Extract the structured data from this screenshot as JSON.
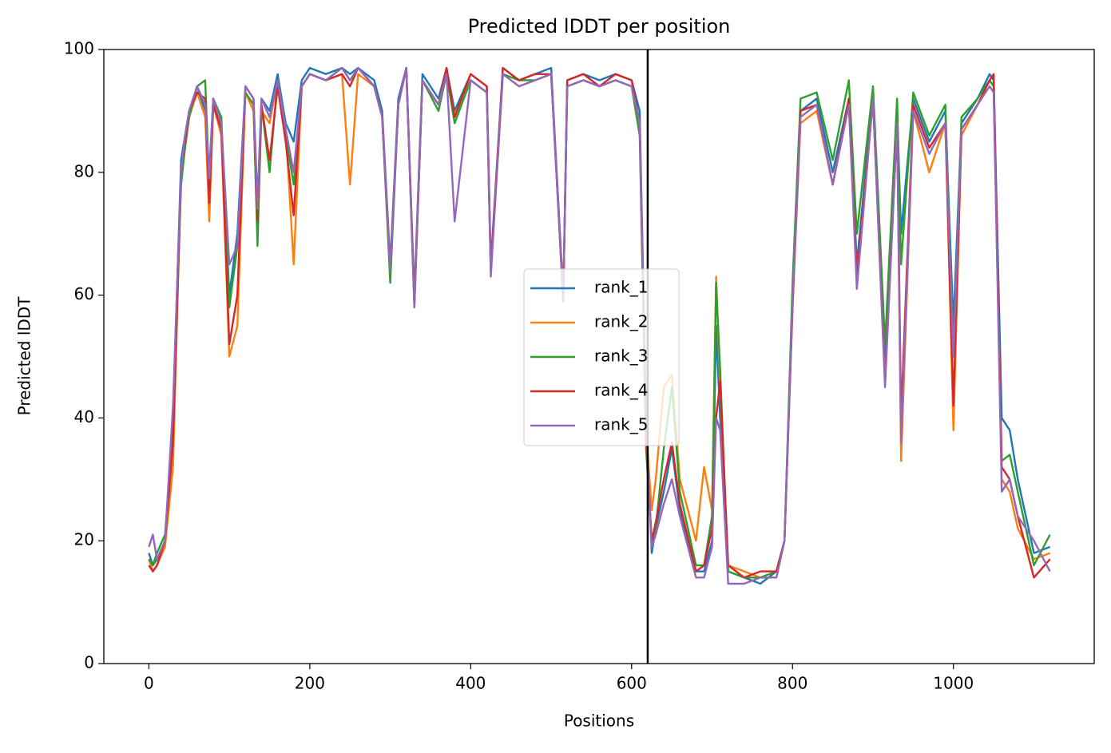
{
  "chart_data": {
    "type": "line",
    "title": "Predicted lDDT per position",
    "xlabel": "Positions",
    "ylabel": "Predicted lDDT",
    "xlim": [
      -56,
      1175
    ],
    "ylim": [
      0,
      100
    ],
    "xticks": [
      0,
      200,
      400,
      600,
      800,
      1000
    ],
    "yticks": [
      0,
      20,
      40,
      60,
      80,
      100
    ],
    "legend": "center",
    "grid": false,
    "vline": 620,
    "vline_color": "#000000",
    "x": [
      0,
      5,
      10,
      20,
      30,
      40,
      45,
      50,
      60,
      70,
      75,
      80,
      90,
      100,
      110,
      120,
      130,
      135,
      140,
      150,
      160,
      170,
      180,
      190,
      200,
      220,
      240,
      250,
      260,
      280,
      290,
      300,
      310,
      320,
      330,
      340,
      360,
      370,
      380,
      400,
      420,
      425,
      440,
      460,
      480,
      500,
      515,
      520,
      540,
      560,
      580,
      600,
      610,
      618,
      625,
      630,
      640,
      650,
      660,
      680,
      690,
      700,
      705,
      710,
      720,
      740,
      760,
      780,
      790,
      800,
      810,
      830,
      850,
      870,
      880,
      900,
      915,
      930,
      935,
      950,
      970,
      990,
      1000,
      1010,
      1030,
      1045,
      1050,
      1060,
      1070,
      1080,
      1100,
      1120
    ],
    "series": [
      {
        "name": "rank_1",
        "color": "#1f77b4",
        "values": [
          18,
          16,
          17,
          20,
          40,
          82,
          86,
          90,
          94,
          90,
          80,
          92,
          88,
          60,
          70,
          94,
          92,
          75,
          92,
          90,
          96,
          88,
          85,
          95,
          97,
          96,
          97,
          96,
          97,
          95,
          90,
          65,
          92,
          97,
          60,
          96,
          92,
          97,
          90,
          96,
          94,
          65,
          97,
          95,
          96,
          97,
          60,
          95,
          96,
          95,
          96,
          95,
          90,
          40,
          18,
          22,
          28,
          35,
          25,
          15,
          15,
          20,
          55,
          40,
          15,
          14,
          13,
          15,
          20,
          60,
          90,
          92,
          80,
          92,
          65,
          93,
          48,
          90,
          70,
          92,
          85,
          90,
          55,
          88,
          92,
          96,
          95,
          40,
          38,
          30,
          18,
          19
        ]
      },
      {
        "name": "rank_2",
        "color": "#ff7f0e",
        "values": [
          17,
          15,
          16,
          19,
          32,
          80,
          84,
          89,
          93,
          89,
          72,
          91,
          86,
          50,
          55,
          93,
          90,
          70,
          90,
          88,
          95,
          87,
          65,
          94,
          96,
          95,
          96,
          78,
          96,
          94,
          89,
          64,
          91,
          97,
          59,
          95,
          91,
          97,
          89,
          95,
          93,
          64,
          96,
          94,
          95,
          96,
          60,
          94,
          95,
          94,
          95,
          94,
          88,
          38,
          25,
          30,
          45,
          47,
          30,
          20,
          32,
          25,
          63,
          45,
          16,
          15,
          14,
          14,
          20,
          58,
          88,
          90,
          78,
          91,
          62,
          92,
          46,
          88,
          33,
          90,
          80,
          88,
          38,
          86,
          91,
          95,
          94,
          30,
          28,
          22,
          17,
          18
        ]
      },
      {
        "name": "rank_3",
        "color": "#2ca02c",
        "values": [
          17,
          16,
          18,
          21,
          38,
          78,
          84,
          89,
          94,
          95,
          78,
          92,
          89,
          58,
          68,
          93,
          91,
          68,
          91,
          80,
          95,
          86,
          78,
          94,
          96,
          95,
          97,
          95,
          97,
          94,
          89,
          62,
          91,
          97,
          58,
          95,
          90,
          96,
          88,
          95,
          93,
          64,
          96,
          95,
          95,
          96,
          59,
          94,
          95,
          94,
          95,
          94,
          86,
          35,
          20,
          22,
          35,
          45,
          28,
          16,
          16,
          24,
          62,
          48,
          15,
          14,
          14,
          15,
          20,
          62,
          92,
          93,
          82,
          95,
          70,
          94,
          52,
          92,
          65,
          93,
          86,
          91,
          50,
          89,
          92,
          95,
          94,
          33,
          34,
          28,
          16,
          21
        ]
      },
      {
        "name": "rank_4",
        "color": "#d62728",
        "values": [
          16,
          15,
          16,
          20,
          36,
          80,
          85,
          90,
          93,
          92,
          75,
          91,
          87,
          52,
          60,
          94,
          92,
          72,
          91,
          82,
          94,
          85,
          73,
          94,
          96,
          95,
          96,
          94,
          97,
          94,
          89,
          64,
          91,
          97,
          59,
          95,
          91,
          97,
          89,
          96,
          94,
          64,
          97,
          95,
          96,
          96,
          59,
          95,
          96,
          94,
          96,
          95,
          88,
          36,
          20,
          23,
          30,
          36,
          26,
          15,
          16,
          22,
          40,
          46,
          16,
          14,
          15,
          15,
          20,
          58,
          90,
          91,
          78,
          92,
          63,
          92,
          46,
          88,
          40,
          91,
          84,
          88,
          42,
          87,
          91,
          95,
          96,
          32,
          30,
          24,
          14,
          17
        ]
      },
      {
        "name": "rank_5",
        "color": "#9467bd",
        "values": [
          19,
          21,
          17,
          20,
          42,
          80,
          86,
          90,
          94,
          91,
          79,
          92,
          88,
          65,
          68,
          94,
          92,
          74,
          92,
          89,
          95,
          87,
          80,
          94,
          96,
          95,
          97,
          95,
          97,
          94,
          89,
          64,
          91,
          97,
          58,
          95,
          91,
          96,
          72,
          95,
          93,
          63,
          96,
          94,
          95,
          96,
          59,
          94,
          95,
          94,
          95,
          94,
          88,
          38,
          19,
          21,
          26,
          30,
          24,
          14,
          14,
          19,
          40,
          38,
          13,
          13,
          14,
          14,
          20,
          59,
          89,
          91,
          78,
          91,
          61,
          92,
          45,
          88,
          36,
          90,
          83,
          88,
          50,
          87,
          91,
          94,
          93,
          28,
          30,
          24,
          20,
          15
        ]
      }
    ]
  }
}
